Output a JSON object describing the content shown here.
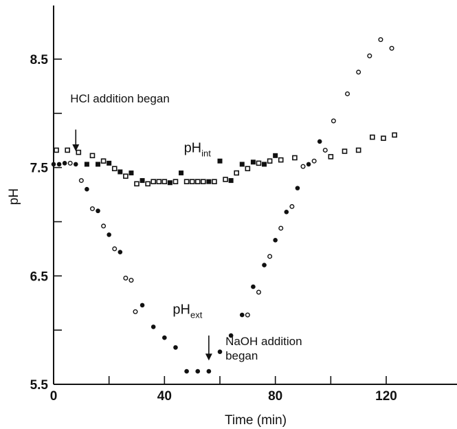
{
  "chart_data": {
    "type": "scatter",
    "xlabel": "Time (min)",
    "ylabel": "pH",
    "xlim": [
      0,
      123
    ],
    "ylim": [
      5.5,
      9.0
    ],
    "xticks": [
      0,
      40,
      80,
      120
    ],
    "xtick_labels": [
      "0",
      "40",
      "80",
      "120"
    ],
    "yticks": [
      5.5,
      6.5,
      7.5,
      8.5
    ],
    "ytick_labels": [
      "5.5",
      "6.5",
      "7.5",
      "8.5"
    ],
    "minor_xticks": [
      20,
      60,
      100
    ],
    "minor_yticks": [
      6.0,
      7.0,
      8.0
    ],
    "grid": false,
    "legend": "none",
    "series": [
      {
        "name": "pH_int",
        "marker": "square",
        "points": [
          {
            "x": 1,
            "y": 7.66,
            "fill": "open"
          },
          {
            "x": 5,
            "y": 7.66,
            "fill": "open"
          },
          {
            "x": 9,
            "y": 7.64,
            "fill": "open"
          },
          {
            "x": 12,
            "y": 7.53,
            "fill": "filled"
          },
          {
            "x": 14,
            "y": 7.61,
            "fill": "open"
          },
          {
            "x": 16,
            "y": 7.53,
            "fill": "filled"
          },
          {
            "x": 18,
            "y": 7.56,
            "fill": "open"
          },
          {
            "x": 20,
            "y": 7.54,
            "fill": "filled"
          },
          {
            "x": 22,
            "y": 7.49,
            "fill": "open"
          },
          {
            "x": 24,
            "y": 7.46,
            "fill": "filled"
          },
          {
            "x": 26,
            "y": 7.42,
            "fill": "open"
          },
          {
            "x": 28,
            "y": 7.45,
            "fill": "filled"
          },
          {
            "x": 30,
            "y": 7.35,
            "fill": "open"
          },
          {
            "x": 32,
            "y": 7.38,
            "fill": "filled"
          },
          {
            "x": 34,
            "y": 7.35,
            "fill": "open"
          },
          {
            "x": 36,
            "y": 7.37,
            "fill": "open"
          },
          {
            "x": 38,
            "y": 7.37,
            "fill": "open"
          },
          {
            "x": 40,
            "y": 7.37,
            "fill": "open"
          },
          {
            "x": 42,
            "y": 7.36,
            "fill": "filled"
          },
          {
            "x": 44,
            "y": 7.37,
            "fill": "open"
          },
          {
            "x": 46,
            "y": 7.45,
            "fill": "filled"
          },
          {
            "x": 48,
            "y": 7.37,
            "fill": "open"
          },
          {
            "x": 50,
            "y": 7.37,
            "fill": "open"
          },
          {
            "x": 52,
            "y": 7.37,
            "fill": "open"
          },
          {
            "x": 54,
            "y": 7.37,
            "fill": "open"
          },
          {
            "x": 56,
            "y": 7.37,
            "fill": "filled"
          },
          {
            "x": 58,
            "y": 7.37,
            "fill": "open"
          },
          {
            "x": 60,
            "y": 7.56,
            "fill": "filled"
          },
          {
            "x": 62,
            "y": 7.39,
            "fill": "open"
          },
          {
            "x": 64,
            "y": 7.38,
            "fill": "filled"
          },
          {
            "x": 66,
            "y": 7.45,
            "fill": "open"
          },
          {
            "x": 68,
            "y": 7.53,
            "fill": "filled"
          },
          {
            "x": 70,
            "y": 7.49,
            "fill": "open"
          },
          {
            "x": 72,
            "y": 7.55,
            "fill": "filled"
          },
          {
            "x": 74,
            "y": 7.54,
            "fill": "open"
          },
          {
            "x": 76,
            "y": 7.53,
            "fill": "filled"
          },
          {
            "x": 78,
            "y": 7.56,
            "fill": "open"
          },
          {
            "x": 80,
            "y": 7.61,
            "fill": "filled"
          },
          {
            "x": 82,
            "y": 7.57,
            "fill": "open"
          },
          {
            "x": 87,
            "y": 7.59,
            "fill": "open"
          },
          {
            "x": 100,
            "y": 7.6,
            "fill": "open"
          },
          {
            "x": 105,
            "y": 7.65,
            "fill": "open"
          },
          {
            "x": 110,
            "y": 7.66,
            "fill": "open"
          },
          {
            "x": 115,
            "y": 7.78,
            "fill": "open"
          },
          {
            "x": 119,
            "y": 7.77,
            "fill": "open"
          },
          {
            "x": 123,
            "y": 7.8,
            "fill": "open"
          }
        ]
      },
      {
        "name": "pH_ext",
        "marker": "circle",
        "points": [
          {
            "x": 0,
            "y": 7.53,
            "fill": "filled"
          },
          {
            "x": 2,
            "y": 7.53,
            "fill": "filled"
          },
          {
            "x": 4,
            "y": 7.54,
            "fill": "filled"
          },
          {
            "x": 6,
            "y": 7.54,
            "fill": "open"
          },
          {
            "x": 8,
            "y": 7.53,
            "fill": "filled"
          },
          {
            "x": 10,
            "y": 7.38,
            "fill": "open"
          },
          {
            "x": 12,
            "y": 7.3,
            "fill": "filled"
          },
          {
            "x": 14,
            "y": 7.12,
            "fill": "open"
          },
          {
            "x": 16,
            "y": 7.1,
            "fill": "filled"
          },
          {
            "x": 18,
            "y": 6.96,
            "fill": "open"
          },
          {
            "x": 20,
            "y": 6.88,
            "fill": "filled"
          },
          {
            "x": 22,
            "y": 6.75,
            "fill": "open"
          },
          {
            "x": 24,
            "y": 6.72,
            "fill": "filled"
          },
          {
            "x": 26,
            "y": 6.48,
            "fill": "open"
          },
          {
            "x": 28,
            "y": 6.46,
            "fill": "open"
          },
          {
            "x": 29.5,
            "y": 6.17,
            "fill": "open"
          },
          {
            "x": 32,
            "y": 6.23,
            "fill": "filled"
          },
          {
            "x": 36,
            "y": 6.03,
            "fill": "filled"
          },
          {
            "x": 40,
            "y": 5.93,
            "fill": "filled"
          },
          {
            "x": 44,
            "y": 5.84,
            "fill": "filled"
          },
          {
            "x": 48,
            "y": 5.62,
            "fill": "filled"
          },
          {
            "x": 52,
            "y": 5.62,
            "fill": "filled"
          },
          {
            "x": 56,
            "y": 5.62,
            "fill": "filled"
          },
          {
            "x": 60,
            "y": 5.8,
            "fill": "filled"
          },
          {
            "x": 64,
            "y": 5.95,
            "fill": "filled"
          },
          {
            "x": 68,
            "y": 6.14,
            "fill": "filled"
          },
          {
            "x": 70,
            "y": 6.14,
            "fill": "open"
          },
          {
            "x": 72,
            "y": 6.4,
            "fill": "filled"
          },
          {
            "x": 74,
            "y": 6.35,
            "fill": "open"
          },
          {
            "x": 76,
            "y": 6.6,
            "fill": "filled"
          },
          {
            "x": 78,
            "y": 6.68,
            "fill": "open"
          },
          {
            "x": 80,
            "y": 6.83,
            "fill": "filled"
          },
          {
            "x": 82,
            "y": 6.94,
            "fill": "open"
          },
          {
            "x": 84,
            "y": 7.09,
            "fill": "filled"
          },
          {
            "x": 86,
            "y": 7.14,
            "fill": "open"
          },
          {
            "x": 88,
            "y": 7.31,
            "fill": "filled"
          },
          {
            "x": 90,
            "y": 7.51,
            "fill": "open"
          },
          {
            "x": 92,
            "y": 7.53,
            "fill": "filled"
          },
          {
            "x": 94,
            "y": 7.56,
            "fill": "open"
          },
          {
            "x": 96,
            "y": 7.74,
            "fill": "filled"
          },
          {
            "x": 98,
            "y": 7.66,
            "fill": "open"
          },
          {
            "x": 101,
            "y": 7.93,
            "fill": "open"
          },
          {
            "x": 106,
            "y": 8.18,
            "fill": "open"
          },
          {
            "x": 110,
            "y": 8.38,
            "fill": "open"
          },
          {
            "x": 114,
            "y": 8.53,
            "fill": "open"
          },
          {
            "x": 118,
            "y": 8.68,
            "fill": "open"
          },
          {
            "x": 122,
            "y": 8.6,
            "fill": "open"
          }
        ]
      }
    ],
    "series_labels": [
      {
        "main": "pH",
        "sub": "int",
        "x": 47,
        "y": 7.64
      },
      {
        "main": "pH",
        "sub": "ext",
        "x": 43,
        "y": 6.15
      }
    ],
    "annotations": [
      {
        "lines": [
          "HCl addition began"
        ],
        "arrow_x": 8,
        "arrow_from_y": 7.85,
        "arrow_to_y": 7.65,
        "text_x": 6,
        "text_y": 8.1
      },
      {
        "lines": [
          "NaOH addition",
          "began"
        ],
        "arrow_x": 56,
        "arrow_from_y": 5.95,
        "arrow_to_y": 5.72,
        "text_x": 62,
        "text_y": 5.86
      }
    ]
  }
}
